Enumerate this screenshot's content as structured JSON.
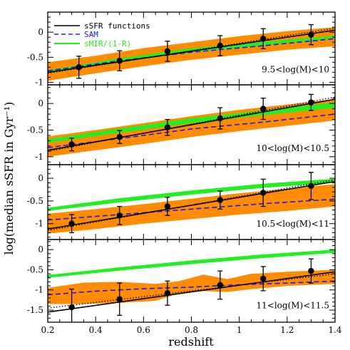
{
  "chart_data": {
    "type": "line",
    "xlabel": "redshift",
    "ylabel": "log(median sSFR in Gyr⁻¹)",
    "xlim": [
      0.2,
      1.4
    ],
    "x_ticks": [
      0.2,
      0.4,
      0.6,
      0.8,
      1.0,
      1.2,
      1.4
    ],
    "x_tick_labels": [
      "0.2",
      "0.4",
      "0.6",
      "0.8",
      "1",
      "1.2",
      "1.4"
    ],
    "legend": {
      "placement": "top-left",
      "entries": [
        {
          "label": "sSFR functions",
          "color": "#000000",
          "style": "solid"
        },
        {
          "label": "SAM",
          "color": "#1a1aff",
          "style": "dashed"
        },
        {
          "label": "sMIR/(1-R)",
          "color": "#22ee22",
          "style": "solid"
        }
      ]
    },
    "colors": {
      "band": "#ff8c00",
      "green": "#22ee22",
      "sam": "#1a1aff",
      "fit": "#000000"
    },
    "panels": [
      {
        "label": "9.5<log(M)<10",
        "ylim": [
          -1.05,
          0.4
        ],
        "y_ticks": [
          -1,
          -0.5,
          0
        ],
        "y_tick_labels": [
          "-1",
          "-0.5",
          "0"
        ],
        "points": {
          "x": [
            0.33,
            0.5,
            0.7,
            0.92,
            1.1,
            1.3
          ],
          "y": [
            -0.7,
            -0.57,
            -0.38,
            -0.27,
            -0.13,
            -0.05
          ],
          "err": [
            0.22,
            0.2,
            0.2,
            0.2,
            0.2,
            0.2
          ]
        },
        "fit": {
          "x": [
            0.2,
            1.4
          ],
          "y": [
            -0.8,
            0.04
          ]
        },
        "dotted": {
          "x": [
            0.2,
            1.4
          ],
          "y": [
            -0.82,
            0.08
          ]
        },
        "sam": {
          "x": [
            0.2,
            0.5,
            0.8,
            1.1,
            1.4
          ],
          "y": [
            -0.77,
            -0.57,
            -0.4,
            -0.27,
            -0.13
          ]
        },
        "green": {
          "x": [
            0.2,
            0.5,
            0.8,
            1.1,
            1.4
          ],
          "lo": [
            -0.8,
            -0.58,
            -0.4,
            -0.26,
            -0.12
          ],
          "hi": [
            -0.76,
            -0.52,
            -0.32,
            -0.19,
            -0.07
          ]
        },
        "band": {
          "x": [
            0.2,
            0.4,
            0.6,
            0.8,
            1.0,
            1.2,
            1.4
          ],
          "lo": [
            -0.97,
            -0.82,
            -0.68,
            -0.55,
            -0.45,
            -0.35,
            -0.28
          ],
          "hi": [
            -0.6,
            -0.47,
            -0.32,
            -0.2,
            -0.08,
            0.02,
            0.1
          ]
        }
      },
      {
        "label": "10<log(M)<10.5",
        "ylim": [
          -1.15,
          0.35
        ],
        "y_ticks": [
          -1,
          -0.5,
          0
        ],
        "y_tick_labels": [
          "-1",
          "-0.5",
          "0"
        ],
        "points": {
          "x": [
            0.3,
            0.5,
            0.7,
            0.92,
            1.1,
            1.3
          ],
          "y": [
            -0.77,
            -0.63,
            -0.45,
            -0.28,
            -0.1,
            0.02
          ],
          "err": [
            0.12,
            0.12,
            0.15,
            0.2,
            0.2,
            0.15
          ]
        },
        "fit": {
          "x": [
            0.2,
            1.4
          ],
          "y": [
            -0.88,
            0.08
          ]
        },
        "dotted": {
          "x": [
            0.2,
            1.4
          ],
          "y": [
            -0.9,
            0.12
          ]
        },
        "sam": {
          "x": [
            0.2,
            0.5,
            0.8,
            1.1,
            1.4
          ],
          "y": [
            -0.83,
            -0.66,
            -0.48,
            -0.35,
            -0.2
          ]
        },
        "green": {
          "x": [
            0.2,
            0.5,
            0.8,
            1.1,
            1.4
          ],
          "lo": [
            -0.74,
            -0.55,
            -0.37,
            -0.22,
            -0.08
          ],
          "hi": [
            -0.67,
            -0.47,
            -0.28,
            -0.13,
            0.02
          ]
        },
        "band": {
          "x": [
            0.2,
            0.4,
            0.6,
            0.8,
            1.0,
            1.2,
            1.4
          ],
          "lo": [
            -1.0,
            -0.88,
            -0.76,
            -0.63,
            -0.52,
            -0.42,
            -0.32
          ],
          "hi": [
            -0.62,
            -0.5,
            -0.37,
            -0.24,
            -0.12,
            -0.02,
            0.08
          ]
        }
      },
      {
        "label": "10.5<log(M)<11",
        "ylim": [
          -1.35,
          0.3
        ],
        "y_ticks": [
          -1,
          -0.5,
          0
        ],
        "y_tick_labels": [
          "-1",
          "-0.5",
          "0"
        ],
        "points": {
          "x": [
            0.3,
            0.5,
            0.7,
            0.92,
            1.1,
            1.3
          ],
          "y": [
            -1.0,
            -0.82,
            -0.62,
            -0.48,
            -0.32,
            -0.17
          ],
          "err": [
            0.2,
            0.2,
            0.2,
            0.2,
            0.3,
            0.3
          ]
        },
        "fit": {
          "x": [
            0.2,
            1.4
          ],
          "y": [
            -1.12,
            -0.07
          ]
        },
        "dotted": {
          "x": [
            0.2,
            1.4
          ],
          "y": [
            -1.15,
            -0.03
          ]
        },
        "sam": {
          "x": [
            0.2,
            0.5,
            0.8,
            1.1,
            1.4
          ],
          "y": [
            -0.92,
            -0.8,
            -0.68,
            -0.56,
            -0.46
          ]
        },
        "green": {
          "x": [
            0.2,
            0.5,
            0.8,
            1.1,
            1.4
          ],
          "lo": [
            -0.72,
            -0.53,
            -0.36,
            -0.21,
            -0.1
          ],
          "hi": [
            -0.65,
            -0.44,
            -0.27,
            -0.12,
            -0.01
          ]
        },
        "band": {
          "x": [
            0.2,
            0.4,
            0.6,
            0.8,
            1.0,
            1.2,
            1.4
          ],
          "lo": [
            -1.22,
            -1.12,
            -1.0,
            -0.9,
            -0.8,
            -0.72,
            -0.62
          ],
          "hi": [
            -0.78,
            -0.68,
            -0.57,
            -0.45,
            -0.33,
            -0.23,
            -0.13
          ]
        }
      },
      {
        "label": "11<log(M)<11.5",
        "ylim": [
          -1.8,
          0.25
        ],
        "y_ticks": [
          -1.5,
          -1,
          -0.5,
          0
        ],
        "y_tick_labels": [
          "-1.5",
          "-1",
          "-0.5",
          "0"
        ],
        "points": {
          "x": [
            0.3,
            0.5,
            0.7,
            0.92,
            1.1,
            1.3
          ],
          "y": [
            -1.43,
            -1.23,
            -1.08,
            -0.88,
            -0.72,
            -0.53
          ],
          "err": [
            0.45,
            0.4,
            0.3,
            0.35,
            0.3,
            0.3
          ]
        },
        "fit": {
          "x": [
            0.2,
            1.4
          ],
          "y": [
            -1.55,
            -0.55
          ]
        },
        "dotted": {
          "x": [
            0.2,
            1.4
          ],
          "y": [
            -1.45,
            -0.6
          ]
        },
        "sam": {
          "x": [
            0.2,
            0.4,
            0.6,
            0.8,
            1.0,
            1.2,
            1.4
          ],
          "y": [
            -1.12,
            -1.03,
            -0.97,
            -0.93,
            -0.87,
            -0.83,
            -0.78
          ]
        },
        "green": {
          "x": [
            0.2,
            0.5,
            0.8,
            1.1,
            1.4
          ],
          "lo": [
            -0.7,
            -0.52,
            -0.36,
            -0.21,
            -0.08
          ],
          "hi": [
            -0.63,
            -0.44,
            -0.27,
            -0.12,
            0.0
          ]
        },
        "band": {
          "x": [
            0.2,
            0.35,
            0.5,
            0.65,
            0.75,
            0.85,
            0.95,
            1.05,
            1.2,
            1.4
          ],
          "lo": [
            -1.35,
            -1.35,
            -1.32,
            -1.27,
            -1.08,
            -1.03,
            -1.05,
            -0.98,
            -0.9,
            -0.85
          ],
          "hi": [
            -0.95,
            -0.82,
            -0.8,
            -0.85,
            -0.78,
            -0.62,
            -0.73,
            -0.6,
            -0.55,
            -0.5
          ]
        }
      }
    ]
  }
}
